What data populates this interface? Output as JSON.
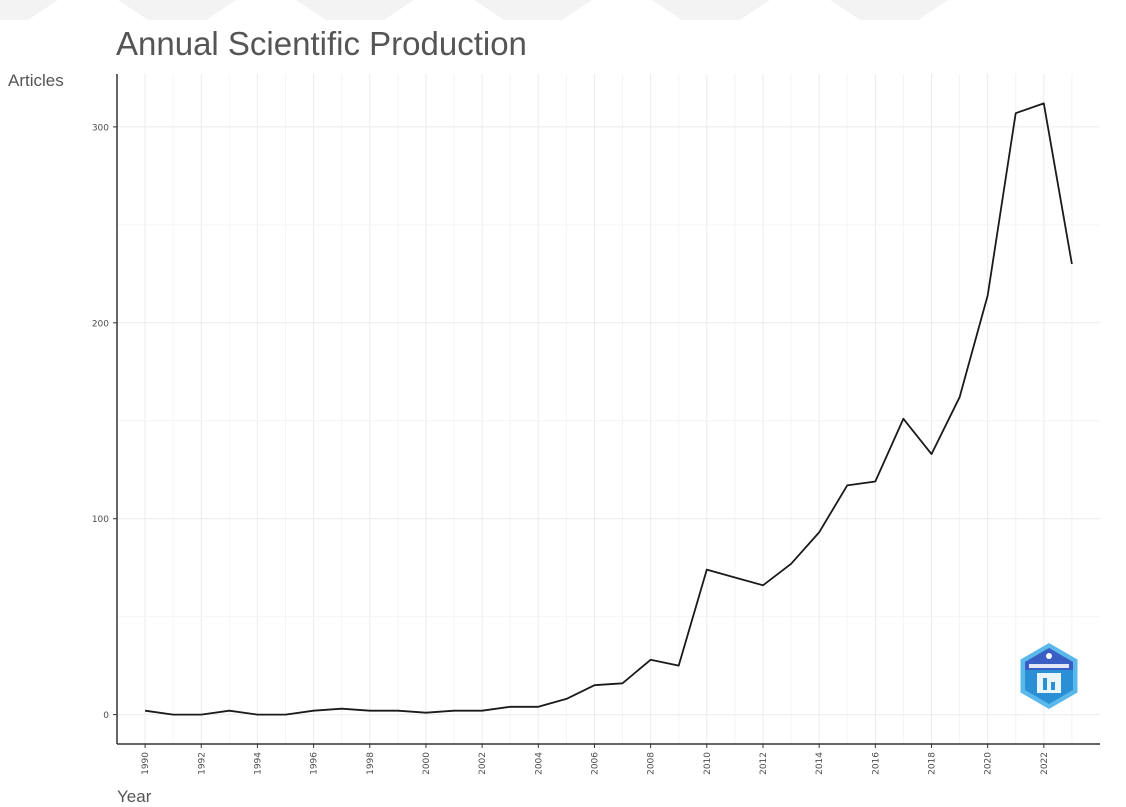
{
  "chart_data": {
    "type": "line",
    "title": "Annual Scientific Production",
    "xlabel": "Year",
    "ylabel": "Articles",
    "x": [
      1990,
      1991,
      1992,
      1993,
      1994,
      1995,
      1996,
      1997,
      1998,
      1999,
      2000,
      2001,
      2002,
      2003,
      2004,
      2005,
      2006,
      2007,
      2008,
      2009,
      2010,
      2011,
      2012,
      2013,
      2014,
      2015,
      2016,
      2017,
      2018,
      2019,
      2020,
      2021,
      2022,
      2023
    ],
    "values": [
      2,
      0,
      0,
      2,
      0,
      0,
      2,
      3,
      2,
      2,
      1,
      2,
      2,
      4,
      4,
      8,
      15,
      16,
      28,
      25,
      74,
      70,
      66,
      77,
      93,
      117,
      119,
      151,
      133,
      162,
      214,
      307,
      312,
      230
    ],
    "xticks": [
      "1990",
      "1992",
      "1994",
      "1996",
      "1998",
      "2000",
      "2002",
      "2004",
      "2006",
      "2008",
      "2010",
      "2012",
      "2014",
      "2016",
      "2018",
      "2020",
      "2022"
    ],
    "yticks": [
      "0",
      "100",
      "200",
      "300"
    ],
    "xlim": [
      1989,
      2024
    ],
    "ylim": [
      -15,
      327
    ],
    "grid": true,
    "line_color": "#1a1a1a",
    "logo_icon": "bibliometrix-hexagon-logo",
    "logo_color": "#2b8fd6"
  }
}
